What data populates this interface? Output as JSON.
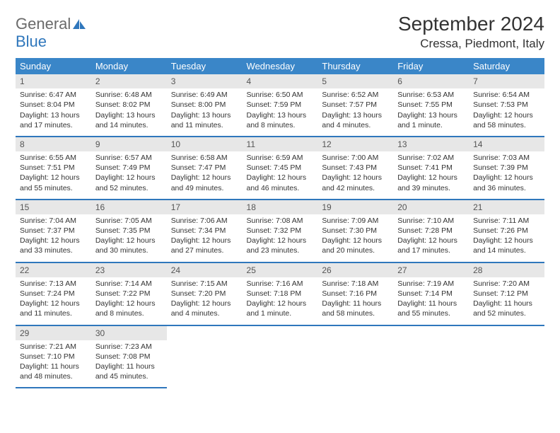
{
  "brand": {
    "name_gray": "General",
    "name_blue": "Blue"
  },
  "title": "September 2024",
  "location": "Cressa, Piedmont, Italy",
  "colors": {
    "header_bg": "#3a86c8",
    "header_text": "#ffffff",
    "daynum_bg": "#e7e7e7",
    "daynum_text": "#555555",
    "divider": "#2f77bc",
    "body_text": "#333333"
  },
  "day_headers": [
    "Sunday",
    "Monday",
    "Tuesday",
    "Wednesday",
    "Thursday",
    "Friday",
    "Saturday"
  ],
  "weeks": [
    [
      {
        "n": "1",
        "sr": "6:47 AM",
        "ss": "8:04 PM",
        "dl": "13 hours and 17 minutes."
      },
      {
        "n": "2",
        "sr": "6:48 AM",
        "ss": "8:02 PM",
        "dl": "13 hours and 14 minutes."
      },
      {
        "n": "3",
        "sr": "6:49 AM",
        "ss": "8:00 PM",
        "dl": "13 hours and 11 minutes."
      },
      {
        "n": "4",
        "sr": "6:50 AM",
        "ss": "7:59 PM",
        "dl": "13 hours and 8 minutes."
      },
      {
        "n": "5",
        "sr": "6:52 AM",
        "ss": "7:57 PM",
        "dl": "13 hours and 4 minutes."
      },
      {
        "n": "6",
        "sr": "6:53 AM",
        "ss": "7:55 PM",
        "dl": "13 hours and 1 minute."
      },
      {
        "n": "7",
        "sr": "6:54 AM",
        "ss": "7:53 PM",
        "dl": "12 hours and 58 minutes."
      }
    ],
    [
      {
        "n": "8",
        "sr": "6:55 AM",
        "ss": "7:51 PM",
        "dl": "12 hours and 55 minutes."
      },
      {
        "n": "9",
        "sr": "6:57 AM",
        "ss": "7:49 PM",
        "dl": "12 hours and 52 minutes."
      },
      {
        "n": "10",
        "sr": "6:58 AM",
        "ss": "7:47 PM",
        "dl": "12 hours and 49 minutes."
      },
      {
        "n": "11",
        "sr": "6:59 AM",
        "ss": "7:45 PM",
        "dl": "12 hours and 46 minutes."
      },
      {
        "n": "12",
        "sr": "7:00 AM",
        "ss": "7:43 PM",
        "dl": "12 hours and 42 minutes."
      },
      {
        "n": "13",
        "sr": "7:02 AM",
        "ss": "7:41 PM",
        "dl": "12 hours and 39 minutes."
      },
      {
        "n": "14",
        "sr": "7:03 AM",
        "ss": "7:39 PM",
        "dl": "12 hours and 36 minutes."
      }
    ],
    [
      {
        "n": "15",
        "sr": "7:04 AM",
        "ss": "7:37 PM",
        "dl": "12 hours and 33 minutes."
      },
      {
        "n": "16",
        "sr": "7:05 AM",
        "ss": "7:35 PM",
        "dl": "12 hours and 30 minutes."
      },
      {
        "n": "17",
        "sr": "7:06 AM",
        "ss": "7:34 PM",
        "dl": "12 hours and 27 minutes."
      },
      {
        "n": "18",
        "sr": "7:08 AM",
        "ss": "7:32 PM",
        "dl": "12 hours and 23 minutes."
      },
      {
        "n": "19",
        "sr": "7:09 AM",
        "ss": "7:30 PM",
        "dl": "12 hours and 20 minutes."
      },
      {
        "n": "20",
        "sr": "7:10 AM",
        "ss": "7:28 PM",
        "dl": "12 hours and 17 minutes."
      },
      {
        "n": "21",
        "sr": "7:11 AM",
        "ss": "7:26 PM",
        "dl": "12 hours and 14 minutes."
      }
    ],
    [
      {
        "n": "22",
        "sr": "7:13 AM",
        "ss": "7:24 PM",
        "dl": "12 hours and 11 minutes."
      },
      {
        "n": "23",
        "sr": "7:14 AM",
        "ss": "7:22 PM",
        "dl": "12 hours and 8 minutes."
      },
      {
        "n": "24",
        "sr": "7:15 AM",
        "ss": "7:20 PM",
        "dl": "12 hours and 4 minutes."
      },
      {
        "n": "25",
        "sr": "7:16 AM",
        "ss": "7:18 PM",
        "dl": "12 hours and 1 minute."
      },
      {
        "n": "26",
        "sr": "7:18 AM",
        "ss": "7:16 PM",
        "dl": "11 hours and 58 minutes."
      },
      {
        "n": "27",
        "sr": "7:19 AM",
        "ss": "7:14 PM",
        "dl": "11 hours and 55 minutes."
      },
      {
        "n": "28",
        "sr": "7:20 AM",
        "ss": "7:12 PM",
        "dl": "11 hours and 52 minutes."
      }
    ],
    [
      {
        "n": "29",
        "sr": "7:21 AM",
        "ss": "7:10 PM",
        "dl": "11 hours and 48 minutes."
      },
      {
        "n": "30",
        "sr": "7:23 AM",
        "ss": "7:08 PM",
        "dl": "11 hours and 45 minutes."
      },
      null,
      null,
      null,
      null,
      null
    ]
  ],
  "labels": {
    "sunrise": "Sunrise:",
    "sunset": "Sunset:",
    "daylight": "Daylight:"
  }
}
